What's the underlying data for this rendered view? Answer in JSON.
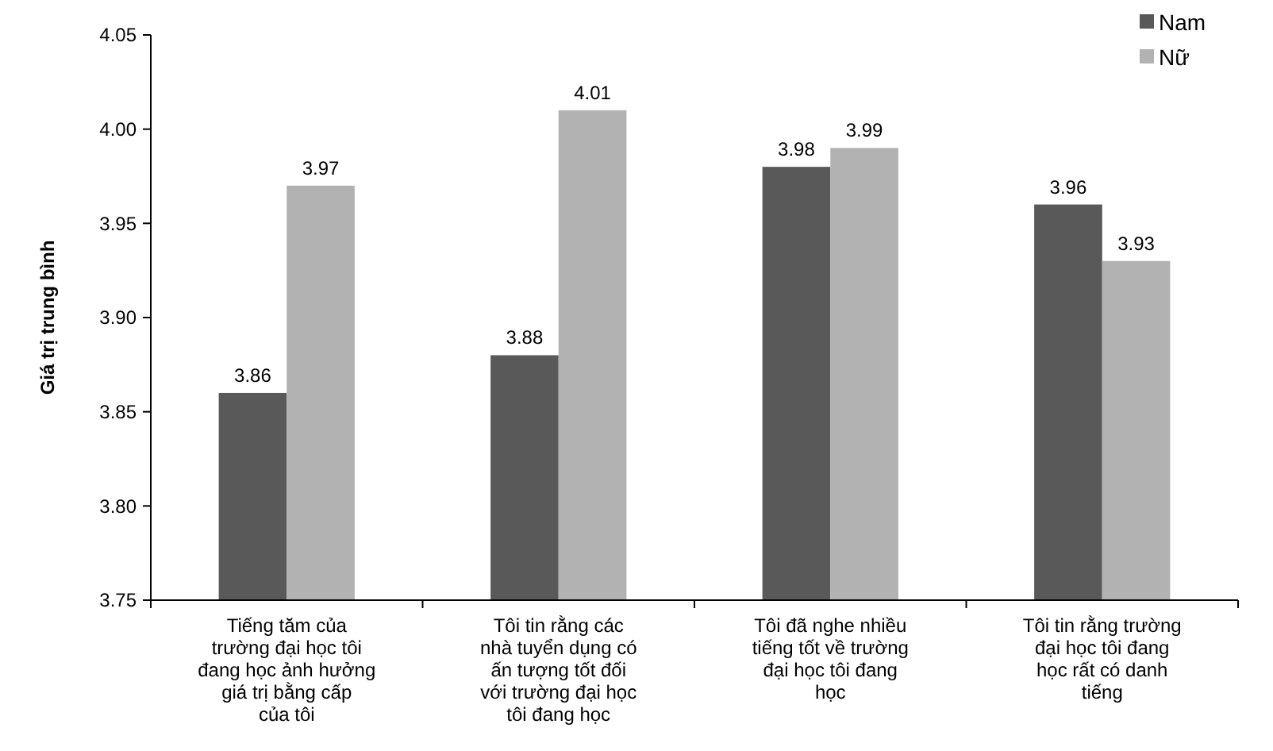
{
  "chart_data": {
    "type": "bar",
    "ylabel": "Giá trị trung bình",
    "categories": [
      "Tiếng tăm của trường đại học tôi đang học ảnh hưởng giá trị bằng cấp của tôi",
      "Tôi tin rằng các nhà tuyển dụng có ấn tượng tốt đối với trường đại học tôi đang học",
      "Tôi đã nghe nhiều tiếng tốt về trường đại học tôi đang học",
      "Tôi tin rằng trường đại học tôi đang học rất có danh tiếng"
    ],
    "series": [
      {
        "name": "Nam",
        "color": "#595959",
        "values": [
          3.86,
          3.88,
          3.98,
          3.96
        ]
      },
      {
        "name": "Nữ",
        "color": "#b2b2b2",
        "values": [
          3.97,
          4.01,
          3.99,
          3.93
        ]
      }
    ],
    "ylim": [
      3.75,
      4.05
    ],
    "yticks": [
      {
        "value": 3.75,
        "label": "3.75"
      },
      {
        "value": 3.8,
        "label": "3.80"
      },
      {
        "value": 3.85,
        "label": "3.85"
      },
      {
        "value": 3.9,
        "label": "3.90"
      },
      {
        "value": 3.95,
        "label": "3.95"
      },
      {
        "value": 4.0,
        "label": "4.00"
      },
      {
        "value": 4.05,
        "label": "4.05"
      }
    ],
    "data_labels": true,
    "legend": "top right",
    "grid": false
  }
}
